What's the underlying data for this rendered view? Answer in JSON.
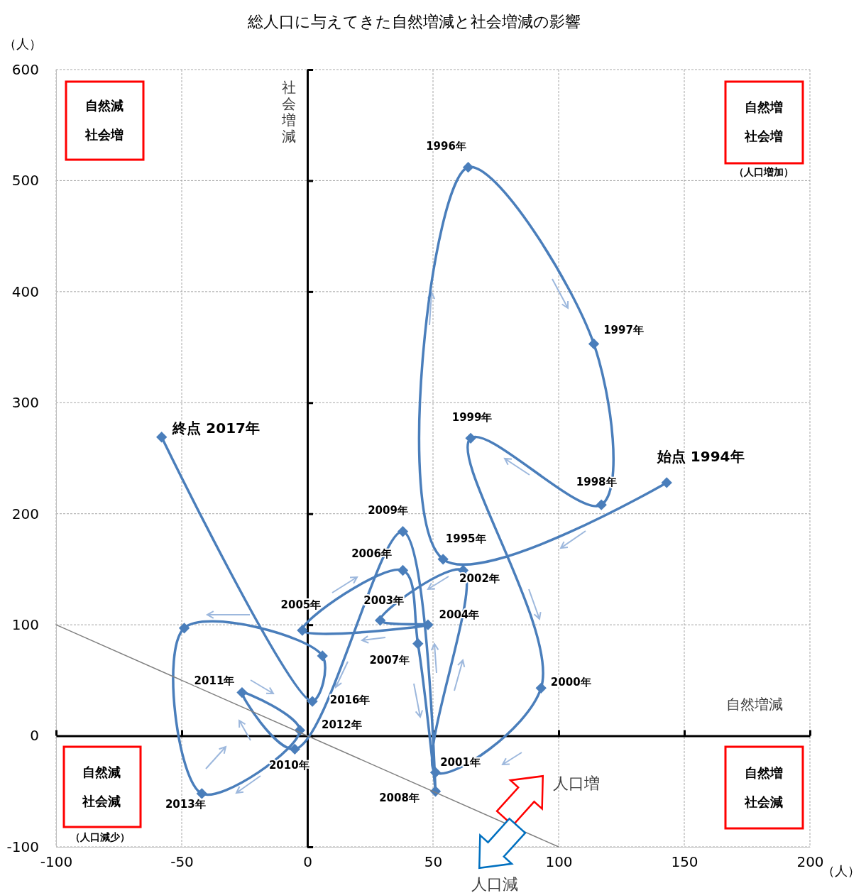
{
  "chart_data": {
    "type": "line",
    "title": "総人口に与えてきた自然増減と社会増減の影響",
    "xlabel": "（人）",
    "ylabel": "（人）",
    "xlim": [
      -100,
      200
    ],
    "xticks": [
      -100,
      -50,
      0,
      50,
      100,
      150,
      200
    ],
    "ylim": [
      -100,
      600
    ],
    "yticks": [
      -100,
      0,
      100,
      200,
      300,
      400,
      500,
      600
    ],
    "grid": true,
    "series": [
      {
        "color": "#4a7ebb",
        "marker": "diamond",
        "x": [
          143,
          54,
          64,
          114,
          117,
          65,
          93,
          51,
          62,
          29,
          48,
          -2,
          38,
          44,
          51,
          38,
          -5,
          -26,
          -3,
          -42,
          -49,
          6,
          2,
          -58
        ],
        "values": [
          228,
          159,
          512,
          353,
          208,
          268,
          43,
          -33,
          149,
          104,
          100,
          95,
          149,
          83,
          -50,
          184,
          -12,
          39,
          5,
          -52,
          97,
          72,
          31,
          269
        ]
      },
      {
        "type": "line",
        "color": "#808080",
        "marker": "none",
        "x": [
          -100,
          100
        ],
        "values": [
          100,
          -100
        ]
      }
    ],
    "annotations": [
      "自然減",
      "社会増",
      "自然増",
      "社会増",
      "（人口増加）",
      "自然減",
      "社会減",
      "（人口減少）",
      "自然増",
      "社会減",
      "社会増減",
      "自然増減",
      "人口増",
      "人口減",
      {
        "text": "始点 1994年",
        "x": 143,
        "y": 228
      },
      {
        "text": "1995年",
        "x": 54,
        "y": 159
      },
      {
        "text": "1996年",
        "x": 64,
        "y": 512
      },
      {
        "text": "1997年",
        "x": 114,
        "y": 353
      },
      {
        "text": "1998年",
        "x": 117,
        "y": 208
      },
      {
        "text": "1999年",
        "x": 65,
        "y": 268
      },
      {
        "text": "2000年",
        "x": 93,
        "y": 43
      },
      {
        "text": "2001年",
        "x": 51,
        "y": -33
      },
      {
        "text": "2002年",
        "x": 62,
        "y": 149
      },
      {
        "text": "2003年",
        "x": 29,
        "y": 104
      },
      {
        "text": "2004年",
        "x": 48,
        "y": 100
      },
      {
        "text": "2005年",
        "x": -2,
        "y": 95
      },
      {
        "text": "2006年",
        "x": 38,
        "y": 149
      },
      {
        "text": "2007年",
        "x": 44,
        "y": 83
      },
      {
        "text": "2008年",
        "x": 51,
        "y": -50
      },
      {
        "text": "2009年",
        "x": 38,
        "y": 184
      },
      {
        "text": "2010年",
        "x": -5,
        "y": -12
      },
      {
        "text": "2011年",
        "x": -26,
        "y": 39
      },
      {
        "text": "2012年",
        "x": -3,
        "y": 5
      },
      {
        "text": "2013年",
        "x": -42,
        "y": -52
      },
      {
        "text": "2016年",
        "x": 2,
        "y": 31
      },
      {
        "text": "終点 2017年",
        "x": -58,
        "y": 269
      }
    ]
  }
}
